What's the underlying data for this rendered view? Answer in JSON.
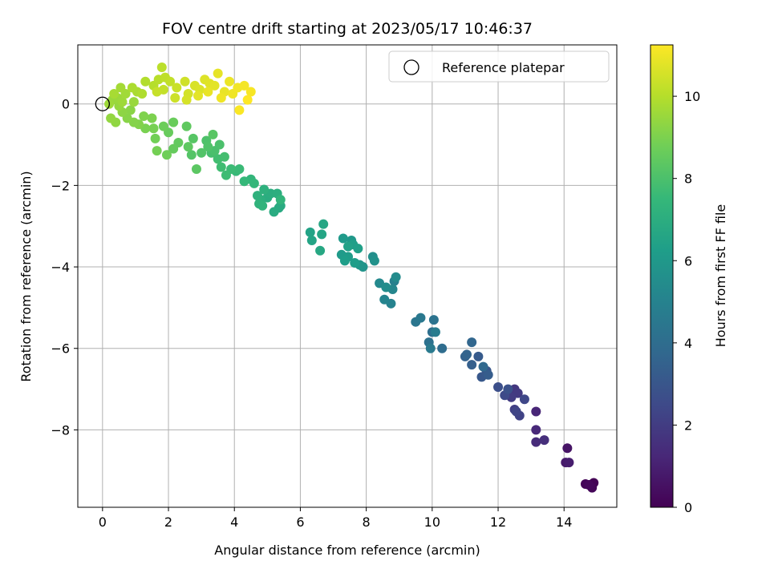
{
  "chart_data": {
    "type": "scatter",
    "title": "FOV centre drift starting at 2023/05/17 10:46:37",
    "xlabel": "Angular distance from reference (arcmin)",
    "ylabel": "Rotation from reference (arcmin)",
    "xlim": [
      -0.75,
      15.6
    ],
    "ylim": [
      -9.9,
      1.45
    ],
    "xticks": [
      0,
      2,
      4,
      6,
      8,
      10,
      12,
      14
    ],
    "yticks": [
      0,
      -2,
      -4,
      -6,
      -8
    ],
    "grid": true,
    "legend": {
      "placement": "top-right",
      "entries": [
        "Reference platepar"
      ]
    },
    "reference_point": {
      "x": 0,
      "y": 0
    },
    "colorbar": {
      "label": "Hours from first FF file",
      "range": [
        0,
        11.25
      ],
      "ticks": [
        0,
        2,
        4,
        6,
        8,
        10
      ],
      "colormap": "viridis"
    },
    "points": [
      [
        14.8,
        -9.35,
        0.0
      ],
      [
        14.9,
        -9.3,
        0.05
      ],
      [
        14.65,
        -9.33,
        0.1
      ],
      [
        14.85,
        -9.42,
        0.15
      ],
      [
        14.75,
        -9.35,
        0.2
      ],
      [
        14.1,
        -8.45,
        0.6
      ],
      [
        14.05,
        -8.8,
        0.8
      ],
      [
        14.15,
        -8.8,
        0.9
      ],
      [
        13.15,
        -7.55,
        1.2
      ],
      [
        13.15,
        -8.0,
        1.3
      ],
      [
        13.15,
        -8.3,
        1.4
      ],
      [
        13.4,
        -8.25,
        1.5
      ],
      [
        12.5,
        -7.0,
        1.8
      ],
      [
        12.6,
        -7.1,
        1.9
      ],
      [
        12.4,
        -7.2,
        2.0
      ],
      [
        12.5,
        -7.5,
        2.1
      ],
      [
        12.65,
        -7.65,
        2.2
      ],
      [
        12.55,
        -7.55,
        2.3
      ],
      [
        12.8,
        -7.25,
        2.4
      ],
      [
        12.2,
        -7.15,
        2.5
      ],
      [
        12.0,
        -6.95,
        2.7
      ],
      [
        12.3,
        -7.0,
        2.8
      ],
      [
        11.65,
        -6.55,
        3.0
      ],
      [
        11.5,
        -6.7,
        3.1
      ],
      [
        11.4,
        -6.2,
        3.2
      ],
      [
        11.7,
        -6.65,
        3.3
      ],
      [
        11.2,
        -6.4,
        3.4
      ],
      [
        11.0,
        -6.2,
        3.5
      ],
      [
        11.05,
        -6.15,
        3.6
      ],
      [
        11.2,
        -5.85,
        3.7
      ],
      [
        11.55,
        -6.45,
        3.8
      ],
      [
        10.3,
        -6.0,
        4.0
      ],
      [
        10.0,
        -5.6,
        4.1
      ],
      [
        9.9,
        -5.85,
        4.2
      ],
      [
        10.05,
        -5.3,
        4.3
      ],
      [
        9.5,
        -5.35,
        4.4
      ],
      [
        9.65,
        -5.25,
        4.5
      ],
      [
        9.95,
        -6.0,
        4.6
      ],
      [
        10.1,
        -5.6,
        4.7
      ],
      [
        8.85,
        -4.35,
        4.9
      ],
      [
        8.75,
        -4.9,
        5.0
      ],
      [
        8.55,
        -4.8,
        5.1
      ],
      [
        8.8,
        -4.55,
        5.2
      ],
      [
        8.4,
        -4.4,
        5.3
      ],
      [
        8.9,
        -4.25,
        5.4
      ],
      [
        8.6,
        -4.5,
        5.5
      ],
      [
        8.2,
        -3.75,
        5.6
      ],
      [
        8.25,
        -3.85,
        5.7
      ],
      [
        7.9,
        -4.0,
        5.8
      ],
      [
        7.8,
        -3.95,
        5.9
      ],
      [
        7.55,
        -3.35,
        6.0
      ],
      [
        7.3,
        -3.3,
        6.05
      ],
      [
        7.25,
        -3.7,
        6.1
      ],
      [
        7.45,
        -3.75,
        6.15
      ],
      [
        7.65,
        -3.9,
        6.2
      ],
      [
        7.35,
        -3.85,
        6.25
      ],
      [
        7.6,
        -3.45,
        6.3
      ],
      [
        7.75,
        -3.55,
        6.35
      ],
      [
        7.45,
        -3.5,
        6.4
      ],
      [
        6.3,
        -3.15,
        6.5
      ],
      [
        6.35,
        -3.35,
        6.55
      ],
      [
        6.65,
        -3.2,
        6.6
      ],
      [
        6.7,
        -2.95,
        6.65
      ],
      [
        6.6,
        -3.6,
        6.7
      ],
      [
        5.35,
        -2.55,
        6.8
      ],
      [
        5.4,
        -2.5,
        6.85
      ],
      [
        5.2,
        -2.65,
        6.9
      ],
      [
        5.0,
        -2.3,
        6.95
      ],
      [
        5.1,
        -2.2,
        7.0
      ],
      [
        5.3,
        -2.2,
        7.05
      ],
      [
        4.8,
        -2.35,
        7.1
      ],
      [
        4.9,
        -2.1,
        7.15
      ],
      [
        4.7,
        -2.25,
        7.2
      ],
      [
        4.75,
        -2.45,
        7.25
      ],
      [
        4.85,
        -2.5,
        7.3
      ],
      [
        5.4,
        -2.35,
        7.35
      ],
      [
        4.5,
        -1.85,
        7.4
      ],
      [
        4.6,
        -1.95,
        7.45
      ],
      [
        4.3,
        -1.9,
        7.5
      ],
      [
        4.05,
        -1.65,
        7.55
      ],
      [
        4.15,
        -1.6,
        7.6
      ],
      [
        3.9,
        -1.6,
        7.65
      ],
      [
        3.75,
        -1.75,
        7.7
      ],
      [
        3.6,
        -1.55,
        7.75
      ],
      [
        3.5,
        -1.35,
        7.8
      ],
      [
        3.7,
        -1.3,
        7.85
      ],
      [
        3.3,
        -1.2,
        7.9
      ],
      [
        3.4,
        -1.15,
        7.95
      ],
      [
        3.55,
        -1.0,
        8.0
      ],
      [
        3.15,
        -0.9,
        8.05
      ],
      [
        3.2,
        -1.05,
        8.1
      ],
      [
        3.0,
        -1.2,
        8.15
      ],
      [
        2.7,
        -1.25,
        8.2
      ],
      [
        2.75,
        -0.85,
        8.25
      ],
      [
        3.35,
        -0.75,
        8.3
      ],
      [
        2.85,
        -1.6,
        8.35
      ],
      [
        2.6,
        -1.05,
        8.4
      ],
      [
        2.55,
        -0.55,
        8.45
      ],
      [
        2.3,
        -0.95,
        8.5
      ],
      [
        2.15,
        -1.1,
        8.55
      ],
      [
        2.0,
        -0.7,
        8.6
      ],
      [
        2.15,
        -0.45,
        8.65
      ],
      [
        1.85,
        -0.55,
        8.7
      ],
      [
        1.95,
        -1.25,
        8.75
      ],
      [
        1.6,
        -0.85,
        8.8
      ],
      [
        1.65,
        -1.15,
        8.85
      ],
      [
        1.55,
        -0.6,
        8.9
      ],
      [
        1.3,
        -0.6,
        8.95
      ],
      [
        1.5,
        -0.35,
        9.0
      ],
      [
        1.25,
        -0.3,
        9.05
      ],
      [
        1.1,
        -0.5,
        9.1
      ],
      [
        0.95,
        -0.45,
        9.15
      ],
      [
        0.75,
        -0.35,
        9.2
      ],
      [
        0.85,
        -0.15,
        9.25
      ],
      [
        0.6,
        -0.2,
        9.3
      ],
      [
        0.4,
        -0.45,
        9.35
      ],
      [
        0.25,
        -0.35,
        9.4
      ],
      [
        0.5,
        -0.05,
        9.45
      ],
      [
        0.3,
        0.1,
        9.5
      ],
      [
        0.45,
        0.15,
        9.55
      ],
      [
        0.6,
        0.05,
        9.6
      ],
      [
        0.7,
        0.25,
        9.65
      ],
      [
        0.55,
        0.4,
        9.7
      ],
      [
        0.35,
        0.25,
        9.75
      ],
      [
        0.2,
        0.0,
        9.6
      ],
      [
        0.95,
        0.05,
        9.5
      ],
      [
        1.05,
        0.3,
        9.8
      ],
      [
        0.9,
        0.4,
        9.85
      ],
      [
        1.2,
        0.25,
        9.9
      ],
      [
        1.3,
        0.55,
        9.95
      ],
      [
        1.55,
        0.45,
        10.0
      ],
      [
        1.7,
        0.6,
        10.05
      ],
      [
        1.8,
        0.9,
        10.1
      ],
      [
        1.9,
        0.65,
        10.15
      ],
      [
        2.05,
        0.55,
        10.2
      ],
      [
        1.85,
        0.35,
        10.25
      ],
      [
        1.65,
        0.3,
        10.3
      ],
      [
        2.25,
        0.4,
        10.35
      ],
      [
        2.2,
        0.15,
        10.4
      ],
      [
        2.5,
        0.55,
        10.45
      ],
      [
        2.6,
        0.25,
        10.5
      ],
      [
        2.55,
        0.1,
        10.55
      ],
      [
        2.8,
        0.45,
        10.6
      ],
      [
        2.95,
        0.35,
        10.65
      ],
      [
        3.1,
        0.6,
        10.7
      ],
      [
        3.25,
        0.5,
        10.75
      ],
      [
        3.4,
        0.45,
        10.8
      ],
      [
        3.5,
        0.75,
        10.85
      ],
      [
        3.7,
        0.3,
        10.9
      ],
      [
        3.85,
        0.55,
        10.95
      ],
      [
        3.95,
        0.25,
        11.0
      ],
      [
        4.1,
        0.4,
        11.05
      ],
      [
        4.3,
        0.45,
        11.1
      ],
      [
        4.5,
        0.3,
        11.15
      ],
      [
        4.15,
        -0.15,
        11.2
      ],
      [
        4.4,
        0.1,
        11.25
      ],
      [
        3.6,
        0.15,
        11.0
      ],
      [
        3.2,
        0.3,
        10.9
      ],
      [
        2.9,
        0.2,
        10.8
      ]
    ]
  }
}
